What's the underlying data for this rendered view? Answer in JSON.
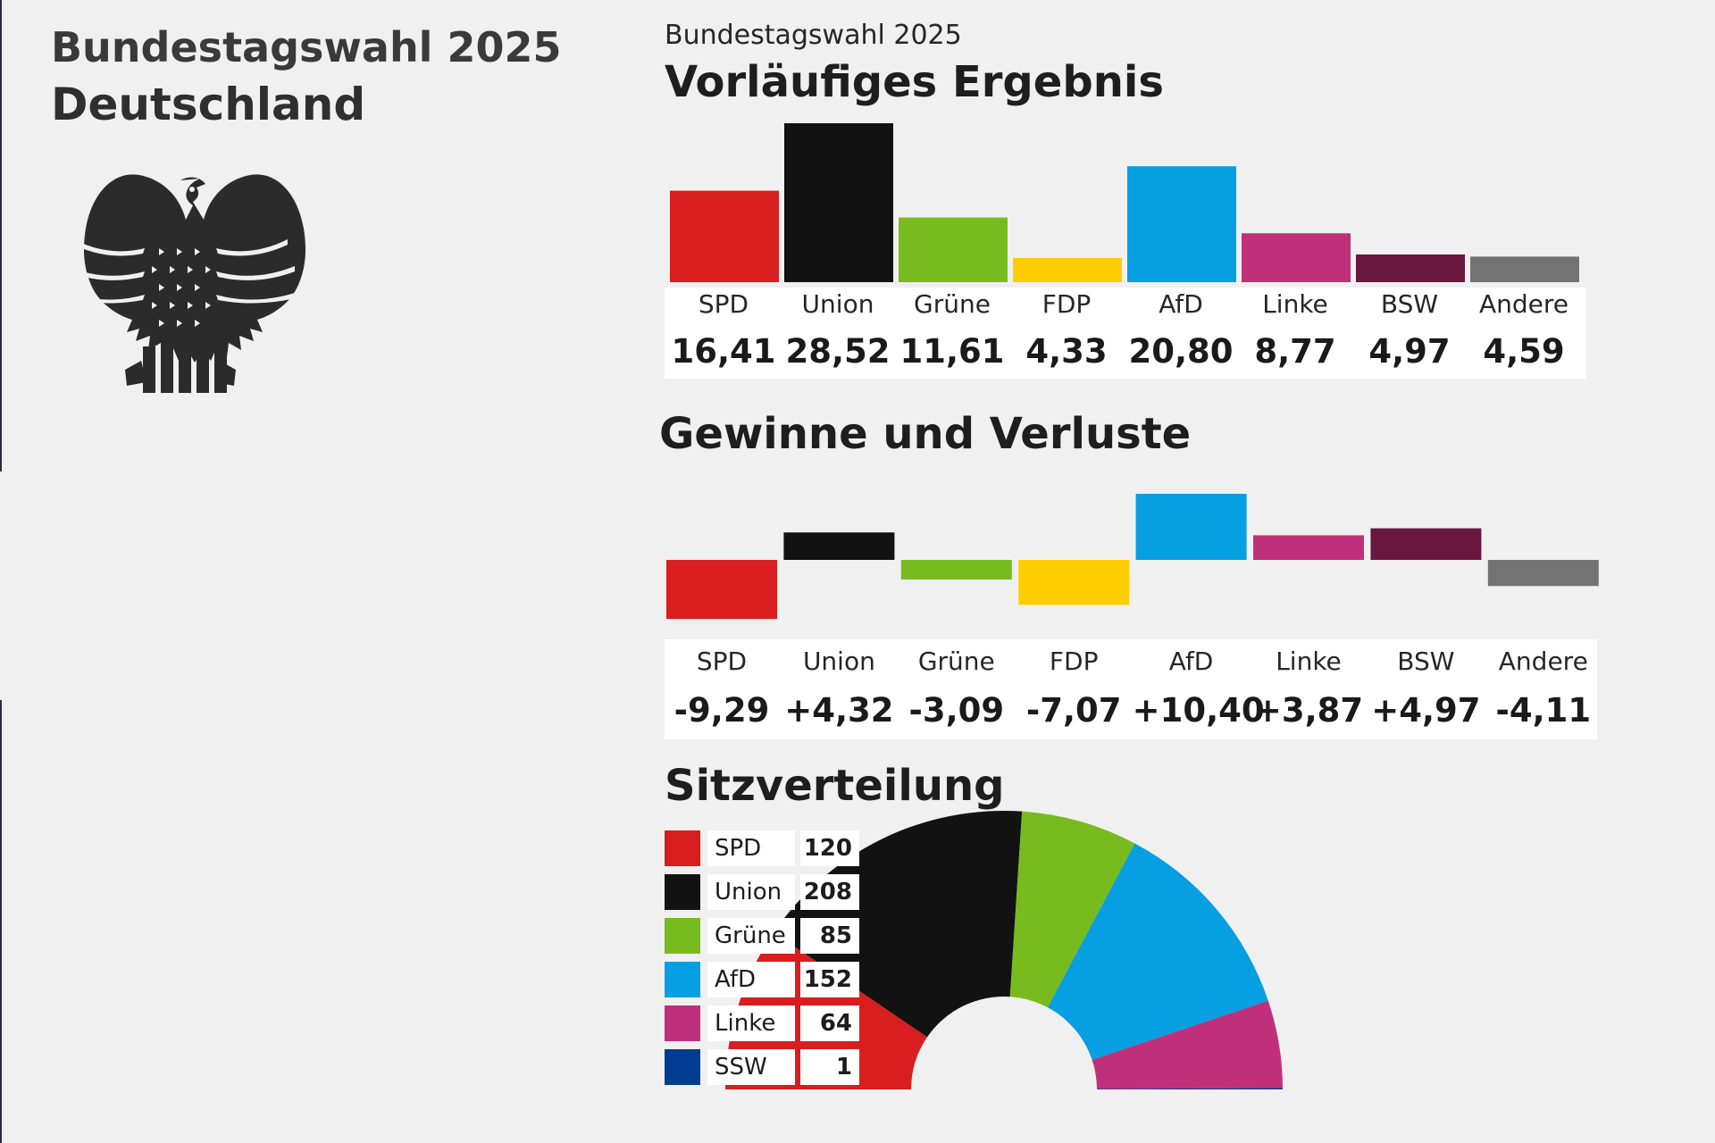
{
  "header": {
    "title": "Bundestagswahl 2025",
    "country": "Deutschland"
  },
  "colors": {
    "SPD": "#d81e1e",
    "Union": "#121212",
    "Grüne": "#78bb1e",
    "FDP": "#ffcc00",
    "AfD": "#069fe2",
    "Linke": "#c0307a",
    "BSW": "#6a173f",
    "Andere": "#737373",
    "SSW": "#003c8f"
  },
  "chart_data": [
    {
      "type": "bar",
      "suptitle": "Bundestagswahl 2025",
      "title": "Vorläufiges Ergebnis",
      "categories": [
        "SPD",
        "Union",
        "Grüne",
        "FDP",
        "AfD",
        "Linke",
        "BSW",
        "Andere"
      ],
      "values": [
        16.41,
        28.52,
        11.61,
        4.33,
        20.8,
        8.77,
        4.97,
        4.59
      ],
      "value_labels": [
        "16,41",
        "28,52",
        "11,61",
        "4,33",
        "20,80",
        "8,77",
        "4,97",
        "4,59"
      ],
      "ylim": [
        0,
        30
      ]
    },
    {
      "type": "bar",
      "title": "Gewinne und Verluste",
      "categories": [
        "SPD",
        "Union",
        "Grüne",
        "FDP",
        "AfD",
        "Linke",
        "BSW",
        "Andere"
      ],
      "values": [
        -9.29,
        4.32,
        -3.09,
        -7.07,
        10.4,
        3.87,
        4.97,
        -4.11
      ],
      "value_labels": [
        "-9,29",
        "+4,32",
        "-3,09",
        "-7,07",
        "+10,40",
        "+3,87",
        "+4,97",
        "-4,11"
      ],
      "ylim": [
        -10,
        11
      ]
    },
    {
      "type": "pie",
      "subtype": "half-donut",
      "title": "Sitzverteilung",
      "categories": [
        "SPD",
        "Union",
        "Grüne",
        "AfD",
        "Linke",
        "SSW"
      ],
      "values": [
        120,
        208,
        85,
        152,
        64,
        1
      ]
    }
  ]
}
